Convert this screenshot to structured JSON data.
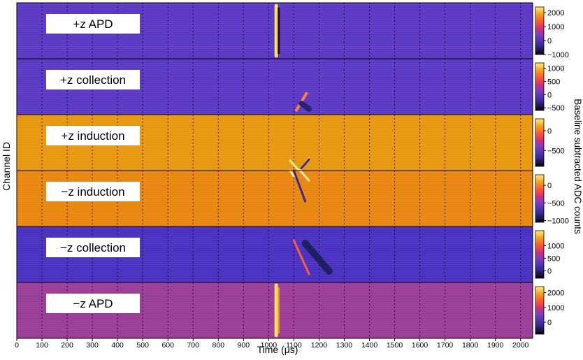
{
  "chart_data": {
    "type": "heatmap",
    "xlabel": "Time (μs)",
    "ylabel": "Channel ID",
    "colorbar_label": "Baseline subtracted ADC counts",
    "xlim": [
      0,
      2048
    ],
    "x_ticks": [
      0,
      100,
      200,
      300,
      400,
      500,
      600,
      700,
      800,
      900,
      1000,
      1100,
      1200,
      1300,
      1400,
      1500,
      1600,
      1700,
      1800,
      1900,
      2000
    ],
    "x_tick_labels": [
      "0",
      "100",
      "200",
      "300",
      "400",
      "500",
      "600",
      "700",
      "800",
      "900",
      "1000",
      "1100",
      "1200",
      "1300",
      "1400",
      "1500",
      "1600",
      "1700",
      "1800",
      "1900",
      "2000"
    ],
    "panels": [
      {
        "label": "+z APD",
        "bg": "#5a38c4",
        "cbar_ticks": [
          2000,
          1000,
          0,
          -1000
        ],
        "cbar_labels": [
          "2000",
          "1000",
          "0",
          "−1000"
        ],
        "cbar_range": [
          -1000,
          2400
        ],
        "tracks": [
          {
            "x": [
              1030,
              1030
            ],
            "y": [
              0.05,
              0.95
            ],
            "color": "#ffe060",
            "w": 5
          },
          {
            "x": [
              1040,
              1040
            ],
            "y": [
              0.1,
              0.9
            ],
            "color": "#1a0a30",
            "w": 3
          }
        ]
      },
      {
        "label": "+z collection",
        "bg": "#5a38c4",
        "cbar_ticks": [
          1000,
          500,
          0,
          -500
        ],
        "cbar_labels": [
          "1000",
          "500",
          "0",
          "−500"
        ],
        "cbar_range": [
          -600,
          1200
        ],
        "tracks": [
          {
            "x": [
              1110,
              1150
            ],
            "y": [
              0.92,
              0.62
            ],
            "color": "#ff8040",
            "w": 4
          },
          {
            "x": [
              1130,
              1160
            ],
            "y": [
              0.8,
              0.9
            ],
            "color": "#2a2470",
            "w": 8
          }
        ]
      },
      {
        "label": "+z induction",
        "bg": "#e8980e",
        "cbar_ticks": [
          0,
          -500
        ],
        "cbar_labels": [
          "0",
          "−500"
        ],
        "cbar_range": [
          -900,
          300
        ],
        "tracks": [
          {
            "x": [
              1085,
              1120
            ],
            "y": [
              0.82,
              1.0
            ],
            "color": "#ffe8a0",
            "w": 3
          },
          {
            "x": [
              1125,
              1160
            ],
            "y": [
              1.0,
              0.78
            ],
            "color": "#ffd080",
            "w": 3
          },
          {
            "x": [
              1130,
              1160
            ],
            "y": [
              0.96,
              0.8
            ],
            "color": "#3a2a90",
            "w": 3
          }
        ]
      },
      {
        "label": "−z induction",
        "bg": "#e8860e",
        "cbar_ticks": [
          0,
          -500,
          -1000
        ],
        "cbar_labels": [
          "0",
          "−500",
          "−1000"
        ],
        "cbar_range": [
          -1050,
          300
        ],
        "tracks": [
          {
            "x": [
              1085,
              1100
            ],
            "y": [
              0.0,
              0.1
            ],
            "color": "#ffe8a0",
            "w": 3
          },
          {
            "x": [
              1100,
              1145
            ],
            "y": [
              0.0,
              0.55
            ],
            "color": "#3a2a90",
            "w": 3
          },
          {
            "x": [
              1125,
              1160
            ],
            "y": [
              0.0,
              0.18
            ],
            "color": "#ffe8a0",
            "w": 3
          }
        ]
      },
      {
        "label": "−z collection",
        "bg": "#4a30c0",
        "cbar_ticks": [
          1000,
          500,
          0
        ],
        "cbar_labels": [
          "1000",
          "500",
          "0"
        ],
        "cbar_range": [
          -300,
          1600
        ],
        "tracks": [
          {
            "x": [
              1100,
              1160
            ],
            "y": [
              0.25,
              0.85
            ],
            "color": "#ff6030",
            "w": 3
          },
          {
            "x": [
              1145,
              1240
            ],
            "y": [
              0.3,
              0.8
            ],
            "color": "#1e2060",
            "w": 10
          }
        ]
      },
      {
        "label": "−z APD",
        "bg": "#9a3c98",
        "cbar_ticks": [
          2000,
          1000,
          0
        ],
        "cbar_labels": [
          "2000",
          "1000",
          "0"
        ],
        "cbar_range": [
          -800,
          2400
        ],
        "tracks": [
          {
            "x": [
              1030,
              1030
            ],
            "y": [
              0.05,
              0.95
            ],
            "color": "#ffe060",
            "w": 5
          },
          {
            "x": [
              1040,
              1040
            ],
            "y": [
              0.1,
              0.9
            ],
            "color": "#f0a020",
            "w": 2
          }
        ]
      }
    ]
  }
}
